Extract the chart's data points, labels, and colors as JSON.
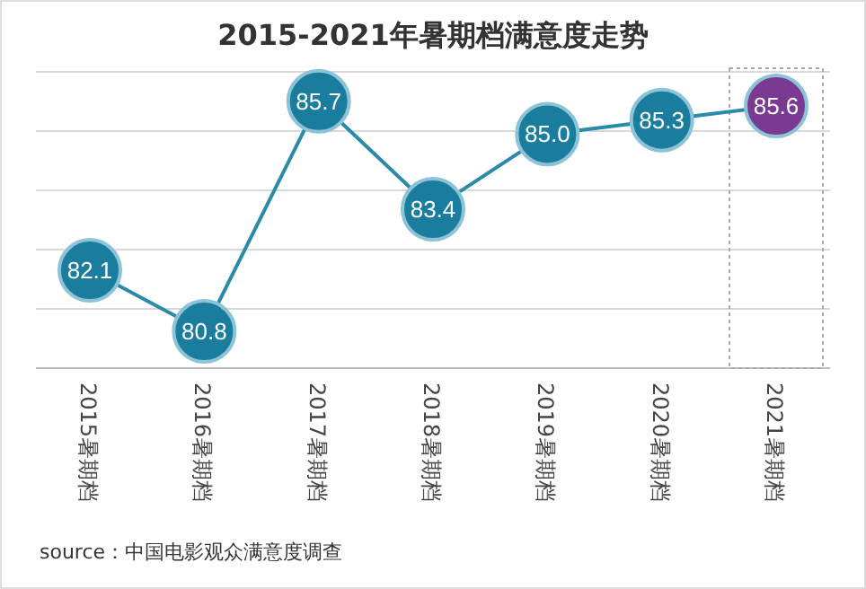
{
  "chart_data": {
    "type": "line",
    "title": "2015-2021年暑期档满意度走势",
    "categories": [
      "2015暑期档",
      "2016暑期档",
      "2017暑期档",
      "2018暑期档",
      "2019暑期档",
      "2020暑期档",
      "2021暑期档"
    ],
    "series": [
      {
        "color": "#2a8aa8",
        "colors": [
          "#1b7d9e",
          "#1b7d9e",
          "#1b7d9e",
          "#1b7d9e",
          "#1b7d9e",
          "#1b7d9e",
          "#7a3a94"
        ],
        "values": [
          82.1,
          80.8,
          85.7,
          83.4,
          85.0,
          85.3,
          85.6
        ],
        "value_labels": [
          "82.1",
          "80.8",
          "85.7",
          "83.4",
          "85.0",
          "85.3",
          "85.6"
        ]
      }
    ],
    "marker": "circle",
    "grid": "y",
    "annotations": [
      "source：中国电影观众满意度调查"
    ]
  }
}
